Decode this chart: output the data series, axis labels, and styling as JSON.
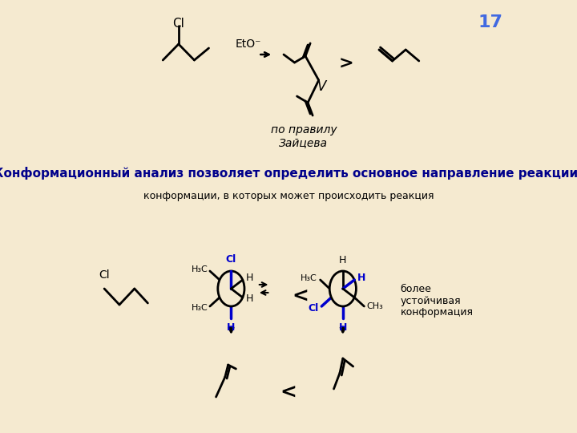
{
  "bg_color": "#f5ead0",
  "title_number": "17",
  "title_color": "#4169e1",
  "main_text": "Конформационный анализ позволяет определить основное направление реакции:",
  "main_text_color": "#00008B",
  "sub_text": "конформации, в которых может происходить реакция",
  "zaitsev_text": "по правилу\nЗайцева",
  "line_color": "#000000",
  "blue_color": "#0000CD",
  "lw": 2.0
}
